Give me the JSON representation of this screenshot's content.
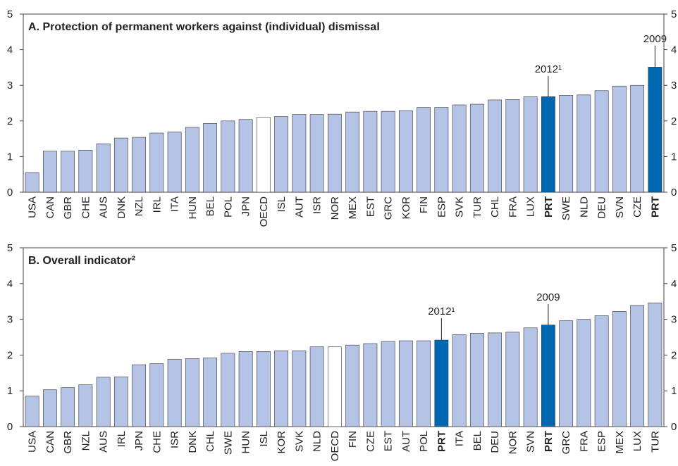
{
  "chart_data": [
    {
      "type": "bar",
      "title": "A. Protection of permanent workers against (individual) dismissal",
      "categories": [
        "USA",
        "CAN",
        "GBR",
        "CHE",
        "AUS",
        "DNK",
        "NZL",
        "IRL",
        "ITA",
        "HUN",
        "BEL",
        "POL",
        "JPN",
        "OECD",
        "ISL",
        "AUT",
        "ISR",
        "NOR",
        "MEX",
        "EST",
        "GRC",
        "KOR",
        "FIN",
        "ESP",
        "SVK",
        "TUR",
        "CHL",
        "FRA",
        "LUX",
        "PRT",
        "SWE",
        "NLD",
        "DEU",
        "SVN",
        "CZE",
        "PRT"
      ],
      "values": [
        0.55,
        1.15,
        1.15,
        1.18,
        1.36,
        1.52,
        1.54,
        1.66,
        1.69,
        1.82,
        1.93,
        2.0,
        2.04,
        2.1,
        2.12,
        2.18,
        2.18,
        2.19,
        2.25,
        2.27,
        2.27,
        2.29,
        2.38,
        2.38,
        2.45,
        2.47,
        2.59,
        2.6,
        2.68,
        2.68,
        2.72,
        2.73,
        2.85,
        2.98,
        3.0,
        3.51
      ],
      "colors": [
        "#b4c3e6",
        "#b4c3e6",
        "#b4c3e6",
        "#b4c3e6",
        "#b4c3e6",
        "#b4c3e6",
        "#b4c3e6",
        "#b4c3e6",
        "#b4c3e6",
        "#b4c3e6",
        "#b4c3e6",
        "#b4c3e6",
        "#b4c3e6",
        "#ffffff",
        "#b4c3e6",
        "#b4c3e6",
        "#b4c3e6",
        "#b4c3e6",
        "#b4c3e6",
        "#b4c3e6",
        "#b4c3e6",
        "#b4c3e6",
        "#b4c3e6",
        "#b4c3e6",
        "#b4c3e6",
        "#b4c3e6",
        "#b4c3e6",
        "#b4c3e6",
        "#b4c3e6",
        "#0068b1",
        "#b4c3e6",
        "#b4c3e6",
        "#b4c3e6",
        "#b4c3e6",
        "#b4c3e6",
        "#0068b1"
      ],
      "annotations": [
        "2012¹",
        "2009"
      ],
      "ylim": [
        0,
        5
      ],
      "yticks": [
        0,
        1,
        2,
        3,
        4,
        5
      ]
    },
    {
      "type": "bar",
      "title": "B. Overall indicator²",
      "categories": [
        "USA",
        "CAN",
        "GBR",
        "NZL",
        "AUS",
        "IRL",
        "JPN",
        "CHE",
        "ISR",
        "DNK",
        "CHL",
        "SWE",
        "HUN",
        "ISL",
        "KOR",
        "SVK",
        "NLD",
        "OECD",
        "FIN",
        "CZE",
        "EST",
        "AUT",
        "POL",
        "PRT",
        "ITA",
        "BEL",
        "DEU",
        "NOR",
        "SVN",
        "PRT",
        "GRC",
        "FRA",
        "ESP",
        "MEX",
        "LUX",
        "TUR"
      ],
      "values": [
        0.85,
        1.03,
        1.09,
        1.17,
        1.38,
        1.39,
        1.73,
        1.76,
        1.88,
        1.9,
        1.92,
        2.05,
        2.1,
        2.1,
        2.12,
        2.12,
        2.23,
        2.23,
        2.28,
        2.32,
        2.38,
        2.4,
        2.4,
        2.42,
        2.57,
        2.61,
        2.62,
        2.64,
        2.76,
        2.84,
        2.96,
        3.0,
        3.1,
        3.22,
        3.39,
        3.46
      ],
      "colors": [
        "#b4c3e6",
        "#b4c3e6",
        "#b4c3e6",
        "#b4c3e6",
        "#b4c3e6",
        "#b4c3e6",
        "#b4c3e6",
        "#b4c3e6",
        "#b4c3e6",
        "#b4c3e6",
        "#b4c3e6",
        "#b4c3e6",
        "#b4c3e6",
        "#b4c3e6",
        "#b4c3e6",
        "#b4c3e6",
        "#b4c3e6",
        "#ffffff",
        "#b4c3e6",
        "#b4c3e6",
        "#b4c3e6",
        "#b4c3e6",
        "#b4c3e6",
        "#0068b1",
        "#b4c3e6",
        "#b4c3e6",
        "#b4c3e6",
        "#b4c3e6",
        "#b4c3e6",
        "#0068b1",
        "#b4c3e6",
        "#b4c3e6",
        "#b4c3e6",
        "#b4c3e6",
        "#b4c3e6",
        "#b4c3e6"
      ],
      "annotations": [
        "2012¹",
        "2009"
      ],
      "ylim": [
        0,
        5
      ],
      "yticks": [
        0,
        1,
        2,
        3,
        4,
        5
      ]
    }
  ]
}
